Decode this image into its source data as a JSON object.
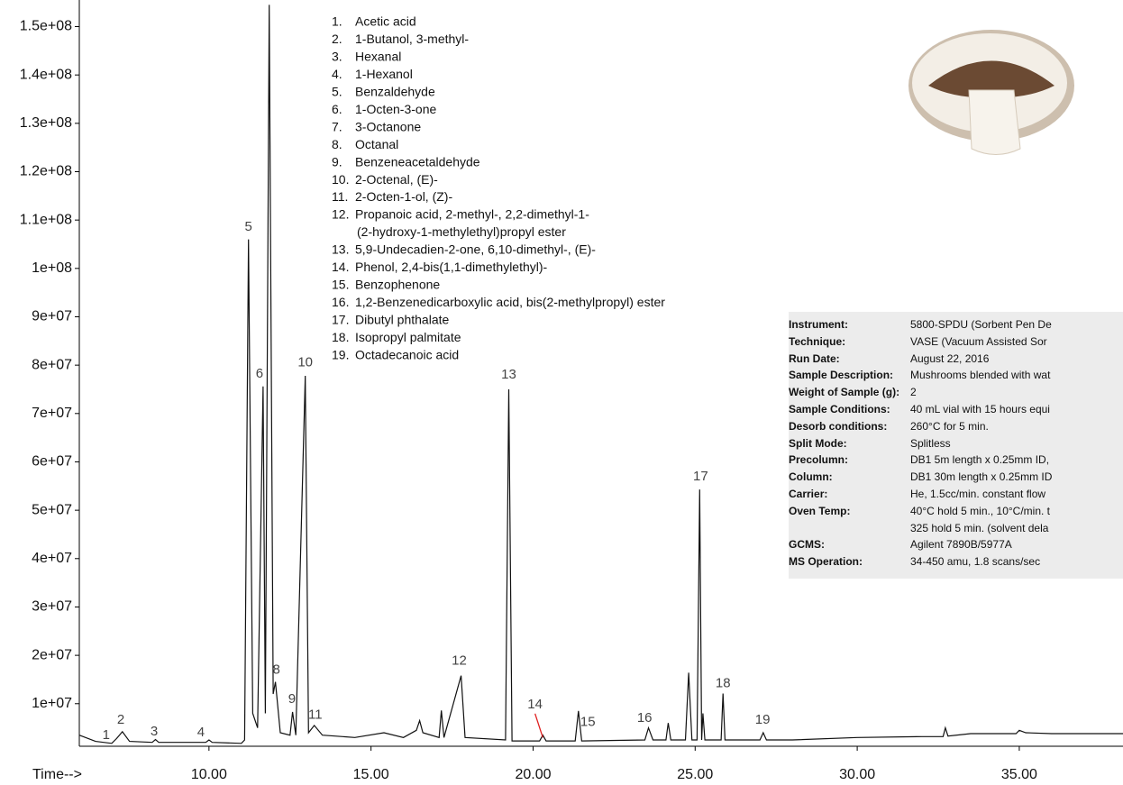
{
  "chart_data": {
    "type": "line",
    "x_label": "Time-->",
    "color": "#111111",
    "xlim": [
      6,
      38.2
    ],
    "ylim": [
      1200000,
      155500000
    ],
    "xticks": [
      {
        "value": 10,
        "label": "10.00"
      },
      {
        "value": 15,
        "label": "15.00"
      },
      {
        "value": 20,
        "label": "20.00"
      },
      {
        "value": 25,
        "label": "25.00"
      },
      {
        "value": 30,
        "label": "30.00"
      },
      {
        "value": 35,
        "label": "35.00"
      }
    ],
    "yticks": [
      {
        "value": 10000000,
        "label": "1e+07"
      },
      {
        "value": 20000000,
        "label": "2e+07"
      },
      {
        "value": 30000000,
        "label": "3e+07"
      },
      {
        "value": 40000000,
        "label": "4e+07"
      },
      {
        "value": 50000000,
        "label": "5e+07"
      },
      {
        "value": 60000000,
        "label": "6e+07"
      },
      {
        "value": 70000000,
        "label": "7e+07"
      },
      {
        "value": 80000000,
        "label": "8e+07"
      },
      {
        "value": 90000000,
        "label": "9e+07"
      },
      {
        "value": 100000000,
        "label": "1e+08"
      },
      {
        "value": 110000000,
        "label": "1.1e+08"
      },
      {
        "value": 120000000,
        "label": "1.2e+08"
      },
      {
        "value": 130000000,
        "label": "1.3e+08"
      },
      {
        "value": 140000000,
        "label": "1.4e+08"
      },
      {
        "value": 150000000,
        "label": "1.5e+08"
      }
    ],
    "x": [
      6.0,
      6.5,
      7.0,
      7.15,
      7.33,
      7.55,
      8.25,
      8.35,
      8.45,
      9.9,
      10.0,
      10.1,
      11.0,
      11.1,
      11.22,
      11.35,
      11.5,
      11.67,
      11.74,
      11.86,
      11.98,
      12.05,
      12.2,
      12.5,
      12.58,
      12.68,
      12.97,
      13.07,
      13.25,
      13.5,
      14.5,
      15.4,
      16.0,
      16.4,
      16.5,
      16.6,
      17.1,
      17.17,
      17.25,
      17.78,
      17.9,
      19.15,
      19.25,
      19.35,
      20.2,
      20.3,
      20.4,
      21.3,
      21.4,
      21.5,
      23.45,
      23.56,
      23.7,
      24.1,
      24.17,
      24.25,
      24.7,
      24.8,
      24.9,
      25.06,
      25.14,
      25.2,
      25.24,
      25.3,
      25.8,
      25.86,
      25.92,
      27.0,
      27.1,
      27.2,
      28.0,
      30.0,
      32.0,
      32.65,
      32.72,
      32.8,
      33.5,
      34.9,
      35.0,
      35.2,
      36.0,
      38.2
    ],
    "values": [
      3500000,
      2200000,
      1800000,
      2800000,
      4200000,
      2200000,
      2000000,
      2600000,
      2000000,
      2000000,
      2500000,
      2000000,
      1800000,
      2500000,
      106000000,
      8000000,
      5000000,
      75600000,
      8000000,
      154500000,
      12000000,
      14500000,
      4000000,
      3500000,
      8300000,
      3500000,
      77800000,
      4000000,
      5500000,
      3500000,
      3000000,
      4000000,
      3000000,
      4500000,
      6500000,
      4000000,
      3000000,
      8600000,
      3000000,
      15800000,
      3000000,
      2500000,
      75000000,
      2300000,
      2300000,
      3500000,
      2300000,
      2300000,
      8500000,
      2300000,
      2500000,
      5000000,
      2500000,
      2500000,
      6000000,
      2500000,
      2500000,
      16400000,
      2500000,
      2500000,
      54300000,
      2500000,
      8000000,
      2500000,
      2500000,
      12100000,
      2500000,
      2500000,
      4000000,
      2500000,
      2500000,
      3000000,
      3200000,
      3200000,
      5000000,
      3300000,
      3800000,
      3800000,
      4500000,
      4000000,
      3800000,
      3800000
    ],
    "annotations": [
      {
        "text": "1",
        "x": 6.83,
        "y": 3460000
      },
      {
        "text": "2",
        "x": 7.28,
        "y": 6600000
      },
      {
        "text": "3",
        "x": 8.31,
        "y": 4200000
      },
      {
        "text": "4",
        "x": 9.75,
        "y": 4000000
      },
      {
        "text": "5",
        "x": 11.22,
        "y": 108500000
      },
      {
        "text": "6",
        "x": 11.56,
        "y": 78200000
      },
      {
        "text": "8",
        "x": 12.08,
        "y": 16900000
      },
      {
        "text": "9",
        "x": 12.56,
        "y": 10900000
      },
      {
        "text": "10",
        "x": 12.97,
        "y": 80500000
      },
      {
        "text": "11",
        "x": 13.28,
        "y": 7600000
      },
      {
        "text": "12",
        "x": 17.72,
        "y": 18800000
      },
      {
        "text": "13",
        "x": 19.25,
        "y": 78000000
      },
      {
        "text": "14",
        "x": 20.06,
        "y": 9800000,
        "arrow_to": [
          20.3,
          3000000
        ],
        "arrow_color": "#e02020"
      },
      {
        "text": "15",
        "x": 21.69,
        "y": 6100000
      },
      {
        "text": "16",
        "x": 23.44,
        "y": 7000000
      },
      {
        "text": "17",
        "x": 25.17,
        "y": 56900000
      },
      {
        "text": "18",
        "x": 25.86,
        "y": 14100000
      },
      {
        "text": "19",
        "x": 27.08,
        "y": 6600000
      }
    ]
  },
  "compound_list": [
    {
      "num": "1.",
      "name": [
        "Acetic acid"
      ]
    },
    {
      "num": "2.",
      "name": [
        "1-Butanol, 3-methyl-"
      ]
    },
    {
      "num": "3.",
      "name": [
        "Hexanal"
      ]
    },
    {
      "num": "4.",
      "name": [
        "1-Hexanol"
      ]
    },
    {
      "num": "5.",
      "name": [
        "Benzaldehyde"
      ]
    },
    {
      "num": "6.",
      "name": [
        "1-Octen-3-one"
      ]
    },
    {
      "num": "7.",
      "name": [
        "3-Octanone"
      ]
    },
    {
      "num": "8.",
      "name": [
        "Octanal"
      ]
    },
    {
      "num": "9.",
      "name": [
        "Benzeneacetaldehyde"
      ]
    },
    {
      "num": "10.",
      "name": [
        "2-Octenal, (E)-"
      ]
    },
    {
      "num": "11.",
      "name": [
        "2-Octen-1-ol, (Z)-"
      ]
    },
    {
      "num": "12.",
      "name": [
        "Propanoic acid, 2-methyl-, 2,2-dimethyl-1-",
        "(2-hydroxy-1-methylethyl)propyl ester"
      ]
    },
    {
      "num": "13.",
      "name": [
        "5,9-Undecadien-2-one, 6,10-dimethyl-, (E)-"
      ]
    },
    {
      "num": "14.",
      "name": [
        "Phenol, 2,4-bis(1,1-dimethylethyl)-"
      ]
    },
    {
      "num": "15.",
      "name": [
        "Benzophenone"
      ]
    },
    {
      "num": "16.",
      "name": [
        "1,2-Benzenedicarboxylic acid, bis(2-methylpropyl) ester"
      ]
    },
    {
      "num": "17.",
      "name": [
        "Dibutyl phthalate"
      ]
    },
    {
      "num": "18.",
      "name": [
        "Isopropyl palmitate"
      ]
    },
    {
      "num": "19.",
      "name": [
        "Octadecanoic acid"
      ]
    }
  ],
  "instrument_table": [
    {
      "key": "Instrument:",
      "value": [
        "5800-SPDU (Sorbent Pen De"
      ]
    },
    {
      "key": "Technique:",
      "value": [
        "VASE (Vacuum Assisted Sor"
      ]
    },
    {
      "key": "Run Date:",
      "value": [
        "August 22, 2016"
      ]
    },
    {
      "key": "Sample Description:",
      "value": [
        "Mushrooms blended with wat"
      ]
    },
    {
      "key": "Weight of Sample (g):",
      "value": [
        "2"
      ]
    },
    {
      "key": "Sample Conditions:",
      "value": [
        "40 mL vial with 15 hours equi"
      ]
    },
    {
      "key": "Desorb conditions:",
      "value": [
        "260°C for 5 min."
      ]
    },
    {
      "key": "Split Mode:",
      "value": [
        "Splitless"
      ]
    },
    {
      "key": "Precolumn:",
      "value": [
        "DB1 5m length x 0.25mm ID,"
      ]
    },
    {
      "key": "Column:",
      "value": [
        "DB1 30m length x 0.25mm ID"
      ]
    },
    {
      "key": "Carrier:",
      "value": [
        "He, 1.5cc/min. constant flow"
      ]
    },
    {
      "key": "Oven Temp:",
      "value": [
        "40°C hold 5 min., 10°C/min. t",
        "325 hold 5 min. (solvent dela"
      ]
    },
    {
      "key": "GCMS:",
      "value": [
        "Agilent 7890B/5977A"
      ]
    },
    {
      "key": "MS Operation:",
      "value": [
        "34-450 amu, 1.8 scans/sec"
      ]
    }
  ]
}
